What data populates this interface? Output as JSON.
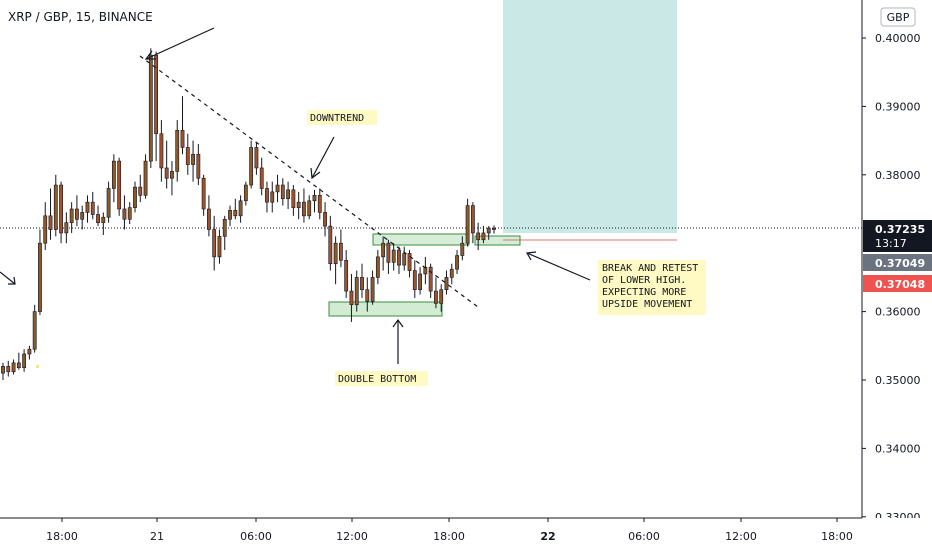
{
  "header": {
    "symbol": "XRP / GBP",
    "interval": "15",
    "exchange": "BINANCE"
  },
  "currency_button": "GBP",
  "chart_data": {
    "type": "candlestick",
    "y_ticks": [
      "0.40000",
      "0.39000",
      "0.38000",
      "0.36000",
      "0.35000",
      "0.34000",
      "0.33000"
    ],
    "y_tick_values": [
      0.4,
      0.39,
      0.38,
      0.36,
      0.35,
      0.34,
      0.33
    ],
    "ylim": [
      0.3297,
      0.4055
    ],
    "x_ticks": [
      {
        "label": "18:00",
        "bold": false
      },
      {
        "label": "21",
        "bold": false
      },
      {
        "label": "06:00",
        "bold": false
      },
      {
        "label": "12:00",
        "bold": false
      },
      {
        "label": "18:00",
        "bold": false
      },
      {
        "label": "22",
        "bold": true
      },
      {
        "label": "06:00",
        "bold": false
      },
      {
        "label": "12:00",
        "bold": false
      },
      {
        "label": "18:00",
        "bold": false
      }
    ],
    "last_price": {
      "value": "0.37235",
      "countdown": "13:17",
      "color": "#131722"
    },
    "price_label_2": {
      "value": "0.37049",
      "color": "#6b7280"
    },
    "price_label_3": {
      "value": "0.37048",
      "color": "#ef5350"
    },
    "candle_colors": {
      "up": "#8b5a2b",
      "down": "#a0522d",
      "wick": "#131722"
    },
    "candles": [
      [
        0.351,
        0.3525,
        0.35,
        0.352
      ],
      [
        0.352,
        0.3528,
        0.3505,
        0.3512
      ],
      [
        0.3512,
        0.353,
        0.3508,
        0.3525
      ],
      [
        0.3525,
        0.354,
        0.3515,
        0.3518
      ],
      [
        0.3518,
        0.3545,
        0.3512,
        0.3538
      ],
      [
        0.3538,
        0.355,
        0.353,
        0.3545
      ],
      [
        0.3545,
        0.361,
        0.354,
        0.36
      ],
      [
        0.36,
        0.372,
        0.3595,
        0.37
      ],
      [
        0.37,
        0.376,
        0.369,
        0.374
      ],
      [
        0.374,
        0.378,
        0.3705,
        0.372
      ],
      [
        0.372,
        0.38,
        0.371,
        0.3785
      ],
      [
        0.3785,
        0.379,
        0.37,
        0.3715
      ],
      [
        0.3715,
        0.3745,
        0.37,
        0.373
      ],
      [
        0.373,
        0.376,
        0.3715,
        0.375
      ],
      [
        0.375,
        0.377,
        0.3725,
        0.3735
      ],
      [
        0.3735,
        0.3755,
        0.372,
        0.3745
      ],
      [
        0.3745,
        0.377,
        0.373,
        0.376
      ],
      [
        0.376,
        0.3775,
        0.3735,
        0.3742
      ],
      [
        0.3742,
        0.3755,
        0.3725,
        0.373
      ],
      [
        0.373,
        0.3745,
        0.3712,
        0.3738
      ],
      [
        0.3738,
        0.379,
        0.373,
        0.378
      ],
      [
        0.378,
        0.383,
        0.376,
        0.382
      ],
      [
        0.382,
        0.3825,
        0.374,
        0.375
      ],
      [
        0.375,
        0.377,
        0.372,
        0.3735
      ],
      [
        0.3735,
        0.376,
        0.3728,
        0.3752
      ],
      [
        0.3752,
        0.379,
        0.3745,
        0.3782
      ],
      [
        0.3782,
        0.38,
        0.376,
        0.377
      ],
      [
        0.377,
        0.383,
        0.3765,
        0.382
      ],
      [
        0.382,
        0.3985,
        0.381,
        0.3975
      ],
      [
        0.3975,
        0.398,
        0.382,
        0.386
      ],
      [
        0.386,
        0.388,
        0.379,
        0.381
      ],
      [
        0.381,
        0.385,
        0.378,
        0.3795
      ],
      [
        0.3795,
        0.382,
        0.377,
        0.3805
      ],
      [
        0.3805,
        0.388,
        0.379,
        0.3865
      ],
      [
        0.3865,
        0.3915,
        0.383,
        0.384
      ],
      [
        0.384,
        0.386,
        0.38,
        0.3815
      ],
      [
        0.3815,
        0.385,
        0.379,
        0.383
      ],
      [
        0.383,
        0.3845,
        0.3785,
        0.3795
      ],
      [
        0.3795,
        0.38,
        0.374,
        0.375
      ],
      [
        0.375,
        0.377,
        0.371,
        0.372
      ],
      [
        0.372,
        0.374,
        0.366,
        0.368
      ],
      [
        0.368,
        0.372,
        0.367,
        0.371
      ],
      [
        0.371,
        0.374,
        0.369,
        0.3735
      ],
      [
        0.3735,
        0.3755,
        0.3725,
        0.3748
      ],
      [
        0.3748,
        0.3765,
        0.3735,
        0.374
      ],
      [
        0.374,
        0.377,
        0.373,
        0.3762
      ],
      [
        0.3762,
        0.379,
        0.3755,
        0.3785
      ],
      [
        0.3785,
        0.385,
        0.378,
        0.384
      ],
      [
        0.384,
        0.3848,
        0.38,
        0.381
      ],
      [
        0.381,
        0.3825,
        0.377,
        0.378
      ],
      [
        0.378,
        0.379,
        0.3745,
        0.376
      ],
      [
        0.376,
        0.379,
        0.3745,
        0.3775
      ],
      [
        0.3775,
        0.38,
        0.376,
        0.3785
      ],
      [
        0.3785,
        0.3795,
        0.3755,
        0.3765
      ],
      [
        0.3765,
        0.379,
        0.375,
        0.3778
      ],
      [
        0.3778,
        0.3785,
        0.374,
        0.3752
      ],
      [
        0.3752,
        0.3775,
        0.3735,
        0.376
      ],
      [
        0.376,
        0.378,
        0.373,
        0.374
      ],
      [
        0.374,
        0.377,
        0.3735,
        0.3762
      ],
      [
        0.3762,
        0.3778,
        0.3745,
        0.377
      ],
      [
        0.377,
        0.378,
        0.3735,
        0.3745
      ],
      [
        0.3745,
        0.376,
        0.371,
        0.3725
      ],
      [
        0.3725,
        0.374,
        0.366,
        0.367
      ],
      [
        0.367,
        0.371,
        0.364,
        0.37
      ],
      [
        0.37,
        0.372,
        0.3665,
        0.3675
      ],
      [
        0.3675,
        0.369,
        0.362,
        0.363
      ],
      [
        0.363,
        0.3655,
        0.3585,
        0.361
      ],
      [
        0.361,
        0.366,
        0.36,
        0.365
      ],
      [
        0.365,
        0.367,
        0.362,
        0.3632
      ],
      [
        0.3632,
        0.365,
        0.36,
        0.3615
      ],
      [
        0.3615,
        0.366,
        0.361,
        0.365
      ],
      [
        0.365,
        0.369,
        0.364,
        0.368
      ],
      [
        0.368,
        0.371,
        0.366,
        0.37
      ],
      [
        0.37,
        0.3705,
        0.3655,
        0.3672
      ],
      [
        0.3672,
        0.37,
        0.366,
        0.369
      ],
      [
        0.369,
        0.3695,
        0.3655,
        0.3668
      ],
      [
        0.3668,
        0.3695,
        0.366,
        0.3685
      ],
      [
        0.3685,
        0.369,
        0.365,
        0.366
      ],
      [
        0.366,
        0.3675,
        0.362,
        0.3632
      ],
      [
        0.3632,
        0.3665,
        0.3625,
        0.3655
      ],
      [
        0.3655,
        0.368,
        0.364,
        0.3665
      ],
      [
        0.3665,
        0.367,
        0.362,
        0.363
      ],
      [
        0.363,
        0.365,
        0.3605,
        0.3612
      ],
      [
        0.3612,
        0.364,
        0.36,
        0.3632
      ],
      [
        0.3632,
        0.366,
        0.3625,
        0.365
      ],
      [
        0.365,
        0.367,
        0.364,
        0.3662
      ],
      [
        0.3662,
        0.369,
        0.3655,
        0.3682
      ],
      [
        0.3682,
        0.371,
        0.3675,
        0.37
      ],
      [
        0.37,
        0.3765,
        0.3695,
        0.3755
      ],
      [
        0.3755,
        0.376,
        0.37,
        0.3715
      ],
      [
        0.3715,
        0.373,
        0.369,
        0.3705
      ],
      [
        0.3705,
        0.3725,
        0.37,
        0.3715
      ],
      [
        0.3715,
        0.3725,
        0.3705,
        0.3722
      ],
      [
        0.3722,
        0.3726,
        0.3714,
        0.372
      ]
    ]
  },
  "annotations": {
    "downtrend": "DOWNTREND",
    "double_bottom": "DOUBLE BOTTOM",
    "break_retest": [
      "BREAK AND RETEST",
      "OF LOWER HIGH.",
      "EXPECTING MORE",
      "UPSIDE MOVEMENT"
    ]
  }
}
